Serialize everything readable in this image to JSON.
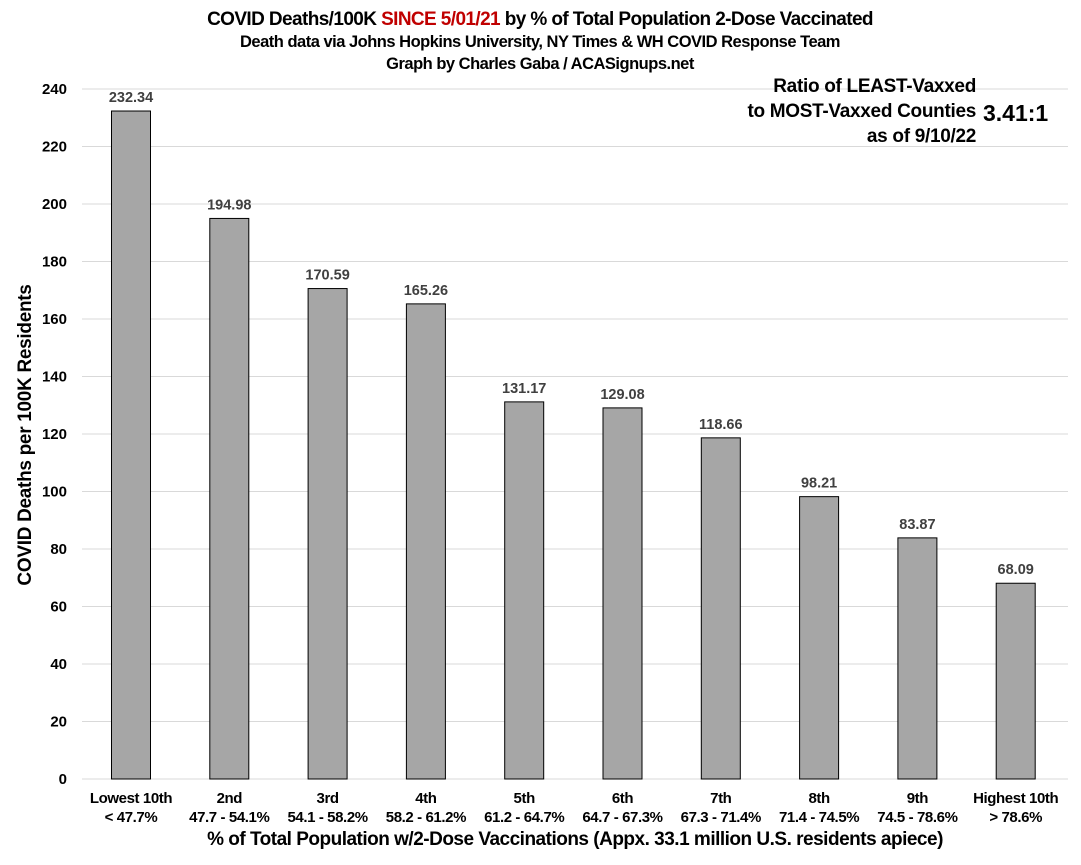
{
  "chart_data": {
    "type": "bar",
    "title_parts": [
      "COVID Deaths/100K ",
      "SINCE 5/01/21",
      " by % of Total Population 2-Dose Vaccinated"
    ],
    "subtitle": "Death data via Johns Hopkins University, NY Times & WH COVID Response Team",
    "credit": "Graph by Charles Gaba / ACASignups.net",
    "categories": [
      "Lowest 10th",
      "2nd",
      "3rd",
      "4th",
      "5th",
      "6th",
      "7th",
      "8th",
      "9th",
      "Highest 10th"
    ],
    "category_ranges": [
      "< 47.7%",
      "47.7 - 54.1%",
      "54.1 - 58.2%",
      "58.2 - 61.2%",
      "61.2 - 64.7%",
      "64.7 - 67.3%",
      "67.3 - 71.4%",
      "71.4 - 74.5%",
      "74.5 - 78.6%",
      "> 78.6%"
    ],
    "values": [
      232.34,
      194.98,
      170.59,
      165.26,
      131.17,
      129.08,
      118.66,
      98.21,
      83.87,
      68.09
    ],
    "data_labels": [
      "232.34",
      "194.98",
      "170.59",
      "165.26",
      "131.17",
      "129.08",
      "118.66",
      "98.21",
      "83.87",
      "68.09"
    ],
    "xlabel": "% of Total Population w/2-Dose Vaccinations (Appx. 33.1 million U.S. residents apiece)",
    "ylabel": "COVID Deaths per 100K Residents",
    "ylim": [
      0,
      240
    ],
    "yticks": [
      0,
      20,
      40,
      60,
      80,
      100,
      120,
      140,
      160,
      180,
      200,
      220,
      240
    ],
    "grid": true,
    "legend": "none",
    "annotation": {
      "lines": [
        "Ratio of LEAST-Vaxxed",
        "to MOST-Vaxxed Counties",
        "as of 9/10/22"
      ],
      "ratio": "3.41:1"
    },
    "colors": {
      "bar": "#a6a6a6",
      "bar_stroke": "#000000",
      "title_highlight": "#c00000",
      "grid": "#d9d9d9",
      "data_label": "#404040"
    }
  }
}
